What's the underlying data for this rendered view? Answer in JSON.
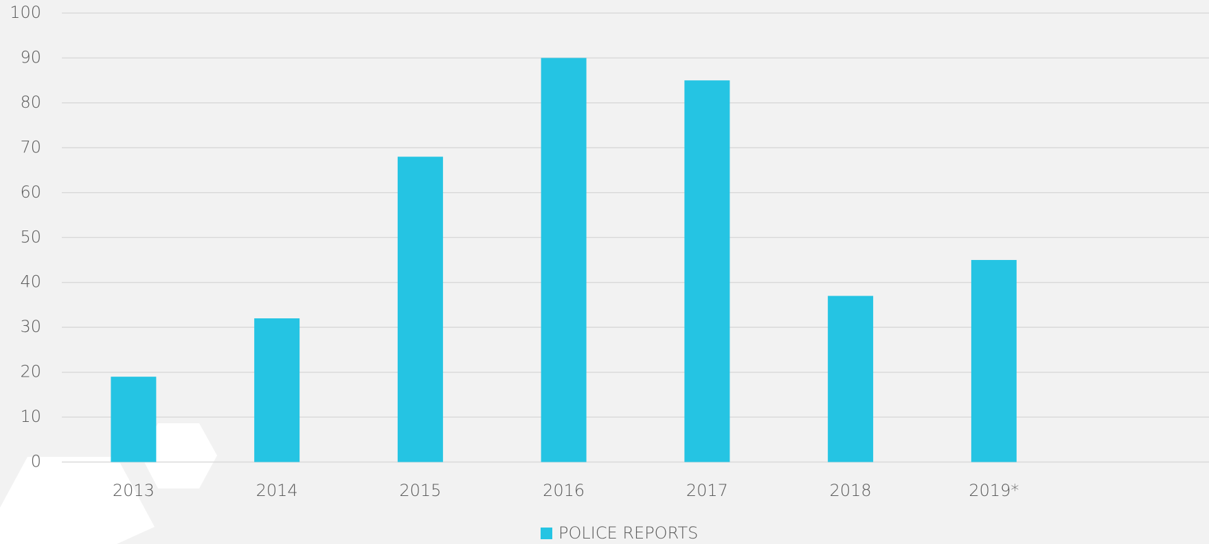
{
  "chart_data": {
    "type": "bar",
    "categories": [
      "2013",
      "2014",
      "2015",
      "2016",
      "2017",
      "2018",
      "2019*",
      null
    ],
    "series": [
      {
        "name": "POLICE REPORTS",
        "color": "#25c4e3",
        "values": [
          19,
          32,
          68,
          90,
          85,
          37,
          45,
          null
        ]
      }
    ],
    "ylim": [
      0,
      100
    ],
    "yticks": [
      0,
      10,
      20,
      30,
      40,
      50,
      60,
      70,
      80,
      90,
      100
    ],
    "grid": true,
    "legend": "bottom"
  }
}
